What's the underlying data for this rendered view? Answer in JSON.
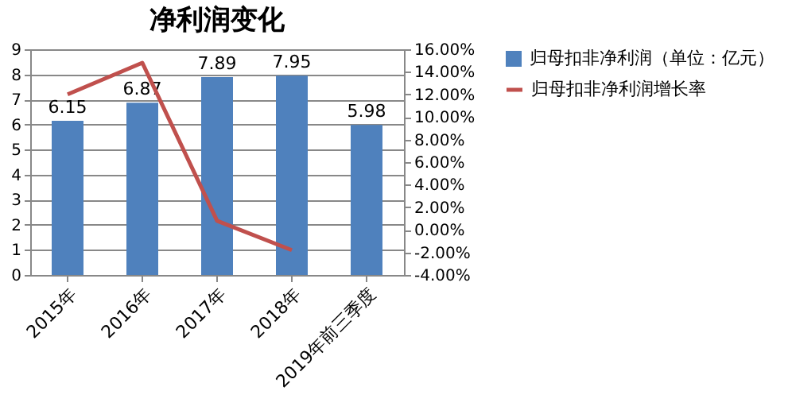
{
  "chart_data": {
    "type": "bar",
    "title": "净利润变化",
    "categories": [
      "2015年",
      "2016年",
      "2017年",
      "2018年",
      "2019年前三季度"
    ],
    "series": [
      {
        "name": "归母扣非净利润（单位：亿元）",
        "color": "#4f81bd",
        "values": [
          6.15,
          6.87,
          7.89,
          7.95,
          5.98
        ],
        "value_labels": [
          "6.15",
          "6.87",
          "7.89",
          "7.95",
          "5.98"
        ]
      },
      {
        "name": "归母扣非净利润增长率",
        "type": "line",
        "axis": "y2",
        "color": "#c0504d",
        "values": [
          12,
          14.8,
          0.8,
          -1.8,
          null
        ]
      }
    ],
    "ylim": [
      0,
      9
    ],
    "yticks": [
      0,
      1,
      2,
      3,
      4,
      5,
      6,
      7,
      8,
      9
    ],
    "y2lim": [
      -4,
      16
    ],
    "y2ticks": [
      {
        "value": -4,
        "label": "-4.00%"
      },
      {
        "value": -2,
        "label": "-2.00%"
      },
      {
        "value": 0,
        "label": "0.00%"
      },
      {
        "value": 2,
        "label": "2.00%"
      },
      {
        "value": 4,
        "label": "4.00%"
      },
      {
        "value": 6,
        "label": "6.00%"
      },
      {
        "value": 8,
        "label": "8.00%"
      },
      {
        "value": 10,
        "label": "10.00%"
      },
      {
        "value": 12,
        "label": "12.00%"
      },
      {
        "value": 14,
        "label": "14.00%"
      },
      {
        "value": 16,
        "label": "16.00%"
      }
    ],
    "grid": "y",
    "legend": "right",
    "marker": "none",
    "line_style": "solid"
  }
}
